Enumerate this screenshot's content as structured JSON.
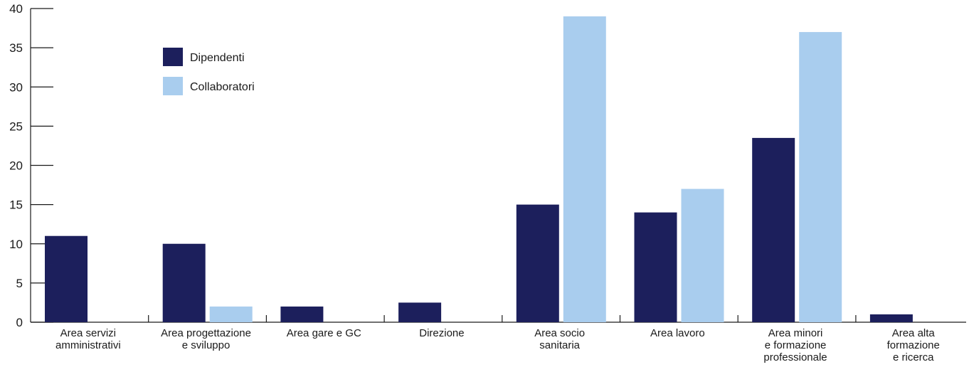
{
  "chart_data": {
    "type": "bar",
    "categories": [
      [
        "Area servizi",
        "amministrativi"
      ],
      [
        "Area progettazione",
        "e sviluppo"
      ],
      [
        "Area gare e GC"
      ],
      [
        "Direzione"
      ],
      [
        "Area socio",
        "sanitaria"
      ],
      [
        "Area lavoro"
      ],
      [
        "Area minori",
        "e formazione",
        "professionale"
      ],
      [
        "Area alta",
        "formazione",
        "e ricerca"
      ]
    ],
    "series": [
      {
        "name": "Dipendenti",
        "color": "#1c1f5c",
        "values": [
          11,
          10,
          2,
          2.5,
          15,
          14,
          23.5,
          1
        ]
      },
      {
        "name": "Collaboratori",
        "color": "#a9cdee",
        "values": [
          0,
          2,
          0,
          0,
          39,
          17,
          37,
          0
        ]
      }
    ],
    "yticks": [
      0,
      5,
      10,
      15,
      20,
      25,
      30,
      35,
      40
    ],
    "ylim": [
      0,
      40
    ],
    "xlabel": "",
    "ylabel": "",
    "title": "",
    "grid": false,
    "legend_position": "top-left"
  }
}
